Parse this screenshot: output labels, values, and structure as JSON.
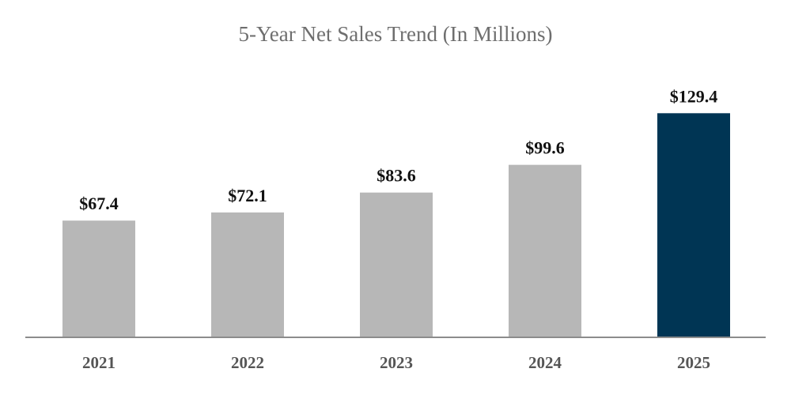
{
  "chart_data": {
    "type": "bar",
    "title": "5-Year Net Sales Trend (In Millions)",
    "categories": [
      "2021",
      "2022",
      "2023",
      "2024",
      "2025"
    ],
    "values": [
      67.4,
      72.1,
      83.6,
      99.6,
      129.4
    ],
    "data_labels": [
      "$67.4",
      "$72.1",
      "$83.6",
      "$99.6",
      "$129.4"
    ],
    "xlabel": "",
    "ylabel": "",
    "ylim": [
      0,
      130
    ],
    "grid": false,
    "legend": "none",
    "colors": {
      "default_bar": "#b7b7b7",
      "highlight_bar": "#003554",
      "axis_line": "#8c8c8c"
    },
    "highlight_index": 4
  }
}
